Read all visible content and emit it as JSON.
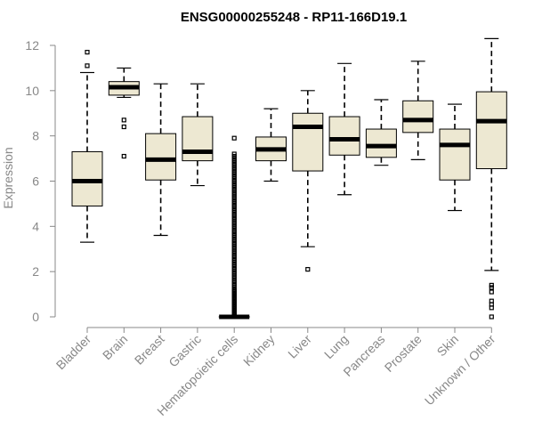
{
  "chart_data": {
    "type": "boxplot",
    "title": "ENSG00000255248 - RP11-166D19.1",
    "xlabel": "",
    "ylabel": "Expression",
    "ylim": [
      0,
      12.3
    ],
    "yticks": [
      0,
      2,
      4,
      6,
      8,
      10,
      12
    ],
    "box_fill": "#ede8d2",
    "series": [
      {
        "name": "Bladder",
        "whisker_low": 3.3,
        "q1": 4.9,
        "median": 6.0,
        "q3": 7.3,
        "whisker_high": 10.8,
        "outliers": [
          11.1,
          11.7
        ]
      },
      {
        "name": "Brain",
        "whisker_low": 9.7,
        "q1": 9.8,
        "median": 10.15,
        "q3": 10.4,
        "whisker_high": 11.0,
        "outliers": [
          7.1,
          8.4,
          8.7
        ]
      },
      {
        "name": "Breast",
        "whisker_low": 3.6,
        "q1": 6.05,
        "median": 6.95,
        "q3": 8.1,
        "whisker_high": 10.3,
        "outliers": []
      },
      {
        "name": "Gastric",
        "whisker_low": 5.8,
        "q1": 6.9,
        "median": 7.3,
        "q3": 8.85,
        "whisker_high": 10.3,
        "outliers": []
      },
      {
        "name": "Hematopoietic cells",
        "whisker_low": 0.0,
        "q1": 0.0,
        "median": 0.0,
        "q3": 0.0,
        "whisker_high": 0.0,
        "outliers": [
          0.05,
          0.1,
          0.15,
          0.2,
          0.25,
          0.3,
          0.35,
          0.4,
          0.45,
          0.5,
          0.55,
          0.6,
          0.65,
          0.7,
          0.75,
          0.8,
          0.85,
          0.9,
          0.95,
          1.0,
          1.05,
          1.1,
          1.15,
          1.2,
          1.3,
          1.4,
          1.5,
          1.6,
          1.7,
          1.8,
          1.9,
          2.0,
          2.1,
          2.2,
          2.3,
          2.4,
          2.5,
          2.6,
          2.7,
          2.8,
          2.9,
          3.0,
          3.1,
          3.2,
          3.3,
          3.4,
          3.5,
          3.6,
          3.7,
          3.8,
          3.9,
          4.0,
          4.1,
          4.2,
          4.3,
          4.4,
          4.5,
          4.6,
          4.7,
          4.8,
          4.9,
          5.0,
          5.1,
          5.2,
          5.3,
          5.4,
          5.5,
          5.6,
          5.7,
          5.8,
          5.9,
          6.0,
          6.1,
          6.2,
          6.3,
          6.4,
          6.5,
          6.6,
          6.7,
          6.8,
          6.9,
          7.0,
          7.1,
          7.2,
          7.9
        ]
      },
      {
        "name": "Kidney",
        "whisker_low": 6.0,
        "q1": 6.9,
        "median": 7.4,
        "q3": 7.95,
        "whisker_high": 9.2,
        "outliers": []
      },
      {
        "name": "Liver",
        "whisker_low": 3.1,
        "q1": 6.45,
        "median": 8.4,
        "q3": 9.0,
        "whisker_high": 10.0,
        "outliers": [
          2.1
        ]
      },
      {
        "name": "Lung",
        "whisker_low": 5.4,
        "q1": 7.15,
        "median": 7.85,
        "q3": 8.85,
        "whisker_high": 11.2,
        "outliers": []
      },
      {
        "name": "Pancreas",
        "whisker_low": 6.7,
        "q1": 7.05,
        "median": 7.55,
        "q3": 8.3,
        "whisker_high": 9.6,
        "outliers": []
      },
      {
        "name": "Prostate",
        "whisker_low": 6.95,
        "q1": 8.15,
        "median": 8.7,
        "q3": 9.55,
        "whisker_high": 11.3,
        "outliers": []
      },
      {
        "name": "Skin",
        "whisker_low": 4.7,
        "q1": 6.05,
        "median": 7.6,
        "q3": 8.3,
        "whisker_high": 9.4,
        "outliers": []
      },
      {
        "name": "Unknown / Other",
        "whisker_low": 2.05,
        "q1": 6.55,
        "median": 8.65,
        "q3": 9.95,
        "whisker_high": 12.3,
        "outliers": [
          0.0,
          0.4,
          0.55,
          0.7,
          1.1,
          1.3,
          1.4
        ]
      }
    ]
  }
}
